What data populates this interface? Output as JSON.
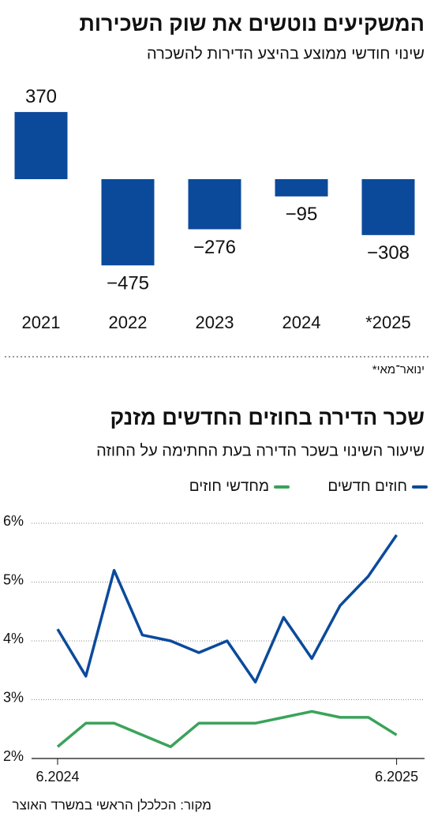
{
  "chart_data": [
    {
      "type": "bar",
      "title": "המשקיעים נוטשים את שוק השכירות",
      "subtitle": "שינוי חודשי ממוצע בהיצע הדירות להשכרה",
      "categories": [
        "2021",
        "2022",
        "2023",
        "2024",
        "*2025"
      ],
      "values": [
        370,
        -475,
        -276,
        -95,
        -308
      ],
      "color": "#0b4a9b",
      "positive_label_color": "#111111",
      "negative_label_color": "#d7262e",
      "note": "ינואר־מאי*"
    },
    {
      "type": "line",
      "title": "שכר הדירה בחוזים החדשים מזנק",
      "subtitle": "שיעור השינוי בשכר הדירה בעת החתימה על החוזה",
      "categories": [
        "6.2024",
        null,
        null,
        null,
        null,
        null,
        null,
        null,
        null,
        null,
        null,
        null,
        "6.2025"
      ],
      "series": [
        {
          "name": "חוזים חדשים",
          "color": "#0b4a9b",
          "values": [
            4.2,
            3.4,
            5.2,
            4.1,
            4.0,
            3.8,
            4.0,
            3.3,
            4.4,
            3.7,
            4.6,
            5.1,
            5.8
          ]
        },
        {
          "name": "מחדשי חוזים",
          "color": "#3aa35a",
          "values": [
            2.2,
            2.6,
            2.6,
            2.4,
            2.2,
            2.6,
            2.6,
            2.6,
            2.7,
            2.8,
            2.7,
            2.7,
            2.4
          ]
        }
      ],
      "ylim": [
        2,
        6
      ],
      "yticks": [
        {
          "value": 2,
          "label": "2%"
        },
        {
          "value": 3,
          "label": "3%"
        },
        {
          "value": 4,
          "label": "4%"
        },
        {
          "value": 5,
          "label": "5%"
        },
        {
          "value": 6,
          "label": "6%"
        }
      ],
      "grid": true,
      "source": "מקור: הכלכלן הראשי במשרד האוצר"
    }
  ]
}
